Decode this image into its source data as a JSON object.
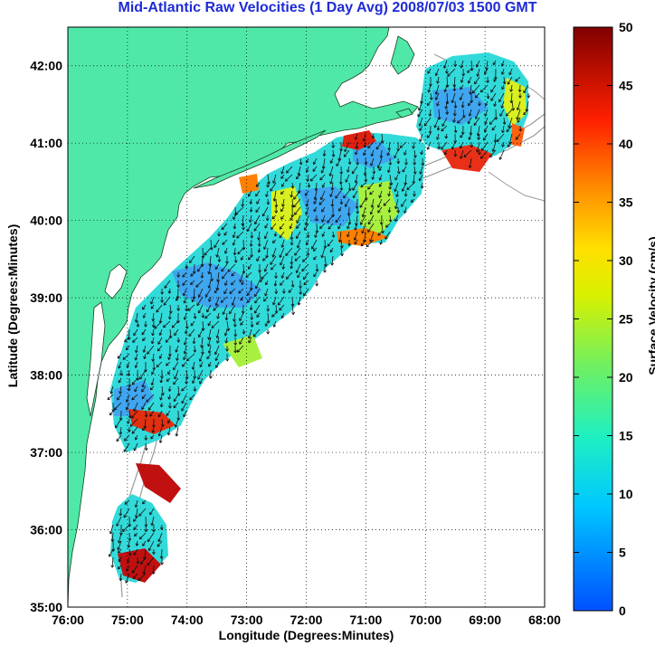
{
  "title": "Mid-Atlantic Raw Velocities (1 Day Avg) 2008/07/03 1500 GMT",
  "x_axis": {
    "label": "Longitude (Degrees:Minutes)",
    "ticks": [
      "76:00",
      "75:00",
      "74:00",
      "73:00",
      "72:00",
      "71:00",
      "70:00",
      "69:00",
      "68:00"
    ]
  },
  "y_axis": {
    "label": "Latitude (Degrees:Minutes)",
    "ticks": [
      "42:00",
      "41:00",
      "40:00",
      "39:00",
      "38:00",
      "37:00",
      "36:00",
      "35:00"
    ]
  },
  "colorbar": {
    "label": "Surface Velocity (cm/s)",
    "ticks": [
      "50",
      "45",
      "40",
      "35",
      "30",
      "25",
      "20",
      "15",
      "10",
      "5",
      "0"
    ],
    "stops": [
      "#0000ff",
      "#0080ff",
      "#00e6ff",
      "#30f0a0",
      "#a0f020",
      "#ffff00",
      "#ffa000",
      "#ff3000",
      "#c00000",
      "#800000"
    ]
  },
  "map": {
    "extent": {
      "lon_min": -76,
      "lon_max": -68,
      "lat_min": 35,
      "lat_max": 42.5
    },
    "land_color": "#4fe8a8",
    "grid": "dotted"
  }
}
